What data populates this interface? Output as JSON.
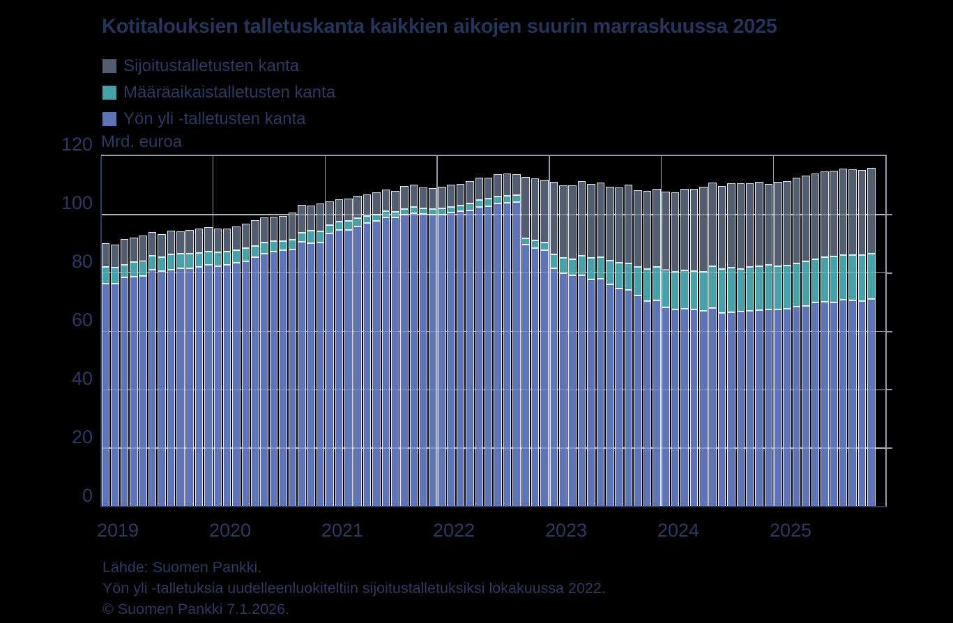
{
  "title": "Kotitalouksien talletuskanta kaikkien aikojen suurin marraskuussa 2025",
  "unit_label": "Mrd. euroa",
  "colors": {
    "investment": "#525D6F",
    "term": "#46A1A9",
    "overnight": "#5F74B6",
    "text_navy": "#2B3A5E",
    "gridline": "#959BA7",
    "background": "#000000"
  },
  "legend": [
    {
      "label": "Sijoitustalletusten kanta",
      "color": "#525D6F"
    },
    {
      "label": "Määräaikaistalletusten kanta",
      "color": "#46A1A9"
    },
    {
      "label": "Yön yli -talletusten kanta",
      "color": "#5F74B6"
    }
  ],
  "y_axis": {
    "ticks": [
      "0",
      "20",
      "40",
      "60",
      "80",
      "100",
      "120"
    ]
  },
  "x_axis": {
    "ticks": [
      "2019",
      "2020",
      "2021",
      "2022",
      "2023",
      "2024",
      "2025"
    ]
  },
  "footer": {
    "source": "Lähde: Suomen Pankki.",
    "note": "Yön yli -talletuksia uudelleenluokiteltiin sijoitustalletuksiksi lokakuussa 2022.",
    "copyright": "© Suomen Pankki 7.1.2026."
  },
  "chart_data": {
    "type": "bar",
    "stacked": true,
    "title": "Kotitalouksien talletuskanta kaikkien aikojen suurin marraskuussa 2025",
    "ylabel": "Mrd. euroa",
    "ylim": [
      0,
      120
    ],
    "ytick_step": 20,
    "grid": true,
    "legend_position": "top-left",
    "note": "Overnight deposits reclassified as investment deposits in October 2022; visible as level shift between blue and grey series.",
    "x": [
      "2019-01",
      "2019-02",
      "2019-03",
      "2019-04",
      "2019-05",
      "2019-06",
      "2019-07",
      "2019-08",
      "2019-09",
      "2019-10",
      "2019-11",
      "2019-12",
      "2020-01",
      "2020-02",
      "2020-03",
      "2020-04",
      "2020-05",
      "2020-06",
      "2020-07",
      "2020-08",
      "2020-09",
      "2020-10",
      "2020-11",
      "2020-12",
      "2021-01",
      "2021-02",
      "2021-03",
      "2021-04",
      "2021-05",
      "2021-06",
      "2021-07",
      "2021-08",
      "2021-09",
      "2021-10",
      "2021-11",
      "2021-12",
      "2022-01",
      "2022-02",
      "2022-03",
      "2022-04",
      "2022-05",
      "2022-06",
      "2022-07",
      "2022-08",
      "2022-09",
      "2022-10",
      "2022-11",
      "2022-12",
      "2023-01",
      "2023-02",
      "2023-03",
      "2023-04",
      "2023-05",
      "2023-06",
      "2023-07",
      "2023-08",
      "2023-09",
      "2023-10",
      "2023-11",
      "2023-12",
      "2024-01",
      "2024-02",
      "2024-03",
      "2024-04",
      "2024-05",
      "2024-06",
      "2024-07",
      "2024-08",
      "2024-09",
      "2024-10",
      "2024-11",
      "2024-12",
      "2025-01",
      "2025-02",
      "2025-03",
      "2025-04",
      "2025-05",
      "2025-06",
      "2025-07",
      "2025-08",
      "2025-09",
      "2025-10",
      "2025-11"
    ],
    "series": [
      {
        "name": "Yön yli -talletusten kanta",
        "key": "overnight",
        "color": "#5F74B6",
        "values": [
          76.4,
          76.4,
          78.6,
          78.8,
          79.0,
          81.0,
          80.6,
          81.0,
          81.5,
          81.6,
          82.0,
          82.7,
          82.4,
          82.8,
          83.4,
          84.0,
          85.5,
          86.6,
          87.3,
          87.9,
          88.1,
          90.6,
          90.3,
          90.5,
          93.6,
          94.6,
          94.7,
          95.9,
          97.0,
          97.9,
          99.0,
          99.1,
          99.9,
          100.4,
          100.2,
          99.9,
          99.9,
          100.7,
          101.1,
          101.5,
          102.5,
          102.9,
          103.7,
          104.1,
          104.3,
          89.8,
          88.6,
          87.7,
          81.7,
          80.0,
          79.1,
          79.3,
          77.8,
          77.9,
          76.0,
          74.6,
          74.2,
          72.2,
          70.5,
          70.6,
          68.2,
          67.4,
          67.7,
          67.5,
          67.1,
          68.0,
          66.4,
          66.6,
          66.7,
          67.0,
          67.3,
          67.6,
          67.5,
          67.7,
          68.4,
          68.7,
          69.8,
          70.2,
          69.8,
          70.8,
          70.6,
          70.5,
          71.0
        ]
      },
      {
        "name": "Määräaikaistalletusten kanta",
        "key": "term",
        "color": "#46A1A9",
        "values": [
          5.7,
          5.4,
          4.3,
          4.9,
          5.1,
          4.9,
          4.9,
          5.3,
          5.0,
          4.9,
          4.9,
          4.7,
          4.7,
          4.5,
          4.4,
          4.4,
          3.8,
          3.8,
          3.5,
          3.1,
          3.3,
          3.1,
          4.2,
          3.8,
          2.9,
          3.0,
          3.1,
          2.9,
          2.4,
          2.1,
          2.1,
          1.9,
          2.0,
          2.1,
          1.8,
          1.9,
          2.3,
          1.9,
          2.0,
          2.3,
          2.5,
          2.5,
          2.4,
          2.2,
          2.4,
          2.1,
          2.5,
          2.8,
          4.7,
          5.2,
          5.7,
          6.6,
          7.4,
          7.5,
          8.2,
          9.0,
          9.0,
          9.8,
          10.9,
          11.4,
          12.8,
          13.0,
          13.1,
          13.2,
          13.3,
          14.2,
          14.9,
          15.3,
          14.7,
          15.0,
          15.1,
          15.2,
          14.9,
          14.9,
          14.8,
          15.3,
          14.9,
          15.2,
          15.9,
          15.4,
          15.6,
          15.6,
          15.6
        ]
      },
      {
        "name": "Sijoitustalletusten kanta",
        "key": "investment",
        "color": "#525D6F",
        "values": [
          8.0,
          8.0,
          8.8,
          8.5,
          8.7,
          8.0,
          7.8,
          8.1,
          7.8,
          8.1,
          8.3,
          8.2,
          8.0,
          7.9,
          8.1,
          8.5,
          8.8,
          8.5,
          8.5,
          8.5,
          9.2,
          9.7,
          8.5,
          9.5,
          8.0,
          7.6,
          7.7,
          7.5,
          7.5,
          7.7,
          7.4,
          7.1,
          7.8,
          7.7,
          7.3,
          7.3,
          7.3,
          7.7,
          7.4,
          7.5,
          7.7,
          7.1,
          7.8,
          7.7,
          7.0,
          21.0,
          21.3,
          21.5,
          24.8,
          24.7,
          25.1,
          25.4,
          25.3,
          25.5,
          25.3,
          25.6,
          27.0,
          26.2,
          26.6,
          26.8,
          26.9,
          27.2,
          28.0,
          28.1,
          29.0,
          28.8,
          28.5,
          28.9,
          29.3,
          28.7,
          28.7,
          27.7,
          28.7,
          28.7,
          29.3,
          29.3,
          29.4,
          29.4,
          29.2,
          29.4,
          29.3,
          29.1,
          29.3
        ]
      }
    ]
  }
}
